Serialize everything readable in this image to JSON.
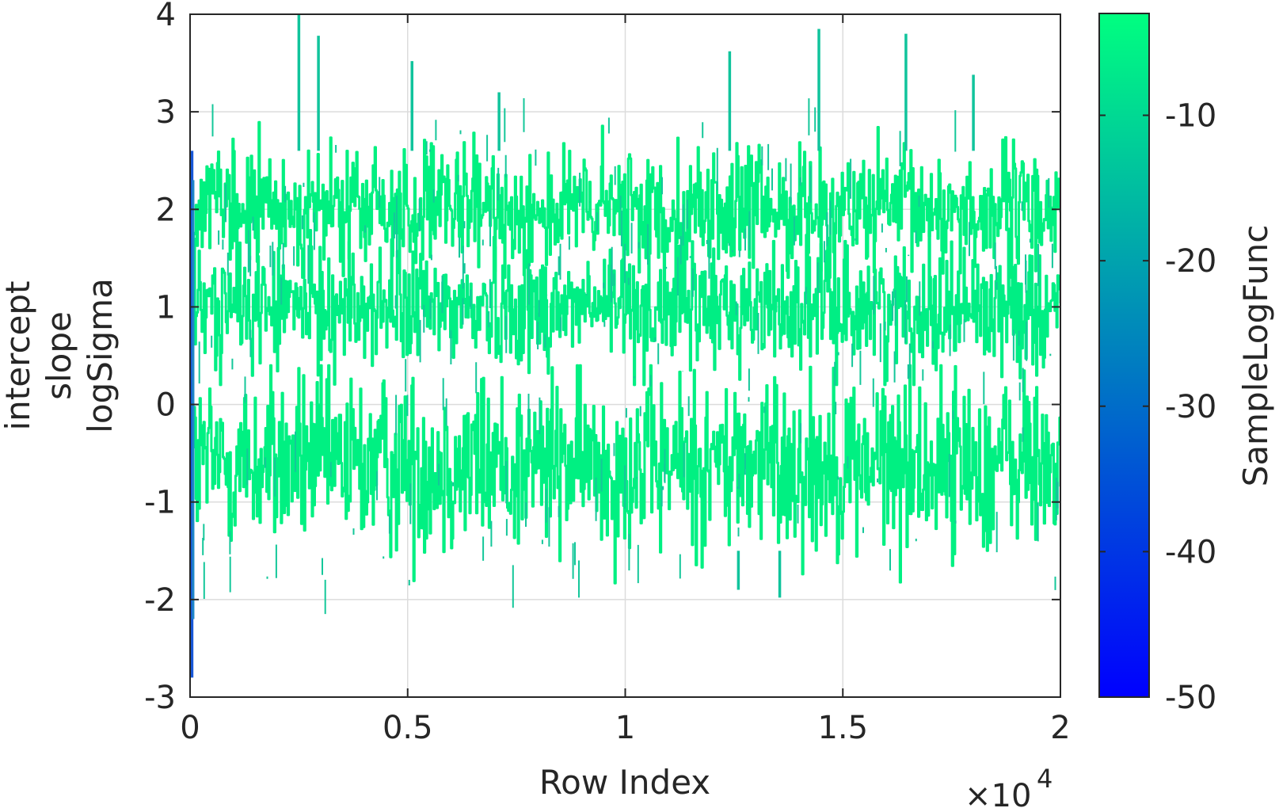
{
  "chart_data": {
    "type": "line",
    "xlabel": "Row Index",
    "x_exponent_label": "×10",
    "x_exponent": "4",
    "ylabel_lines": [
      "intercept",
      "slope",
      "logSigma"
    ],
    "xlim": [
      0,
      20000
    ],
    "ylim": [
      -3,
      4
    ],
    "grid": true,
    "x_ticks": [
      {
        "value": 0,
        "label": "0"
      },
      {
        "value": 5000,
        "label": "0.5"
      },
      {
        "value": 10000,
        "label": "1"
      },
      {
        "value": 15000,
        "label": "1.5"
      },
      {
        "value": 20000,
        "label": "2"
      }
    ],
    "y_ticks": [
      {
        "value": -3,
        "label": "-3"
      },
      {
        "value": -2,
        "label": "-2"
      },
      {
        "value": -1,
        "label": "-1"
      },
      {
        "value": 0,
        "label": "0"
      },
      {
        "value": 1,
        "label": "1"
      },
      {
        "value": 2,
        "label": "2"
      },
      {
        "value": 3,
        "label": "3"
      },
      {
        "value": 4,
        "label": "4"
      }
    ],
    "series": [
      {
        "center": -0.6,
        "band": [
          -1.8,
          0.3
        ],
        "color": "#00f082"
      },
      {
        "center": 1.0,
        "band": [
          0.3,
          1.7
        ],
        "color": "#00ee84"
      },
      {
        "center": 2.0,
        "band": [
          1.4,
          2.8
        ],
        "color": "#00f080"
      }
    ],
    "spikes": [
      {
        "x": 2500,
        "y": 4.0
      },
      {
        "x": 2950,
        "y": 3.78
      },
      {
        "x": 5100,
        "y": 3.52
      },
      {
        "x": 7100,
        "y": 3.2
      },
      {
        "x": 12400,
        "y": 3.62
      },
      {
        "x": 14450,
        "y": 3.85
      },
      {
        "x": 16450,
        "y": 3.8
      },
      {
        "x": 18000,
        "y": 3.38
      },
      {
        "x": 13550,
        "y": -1.98
      },
      {
        "x": 12600,
        "y": -1.9
      }
    ],
    "burn_in": {
      "x_end": 80,
      "y_min": -2.8,
      "y_max": 2.6,
      "color": "#1858d8"
    },
    "colorbar": {
      "label": "SampleLogFunc",
      "range": [
        -50,
        -3
      ],
      "colors": [
        "#0000ff",
        "#00ff80"
      ],
      "ticks": [
        {
          "value": -50,
          "label": "-50"
        },
        {
          "value": -40,
          "label": "-40"
        },
        {
          "value": -30,
          "label": "-30"
        },
        {
          "value": -20,
          "label": "-20"
        },
        {
          "value": -10,
          "label": "-10"
        }
      ]
    }
  }
}
